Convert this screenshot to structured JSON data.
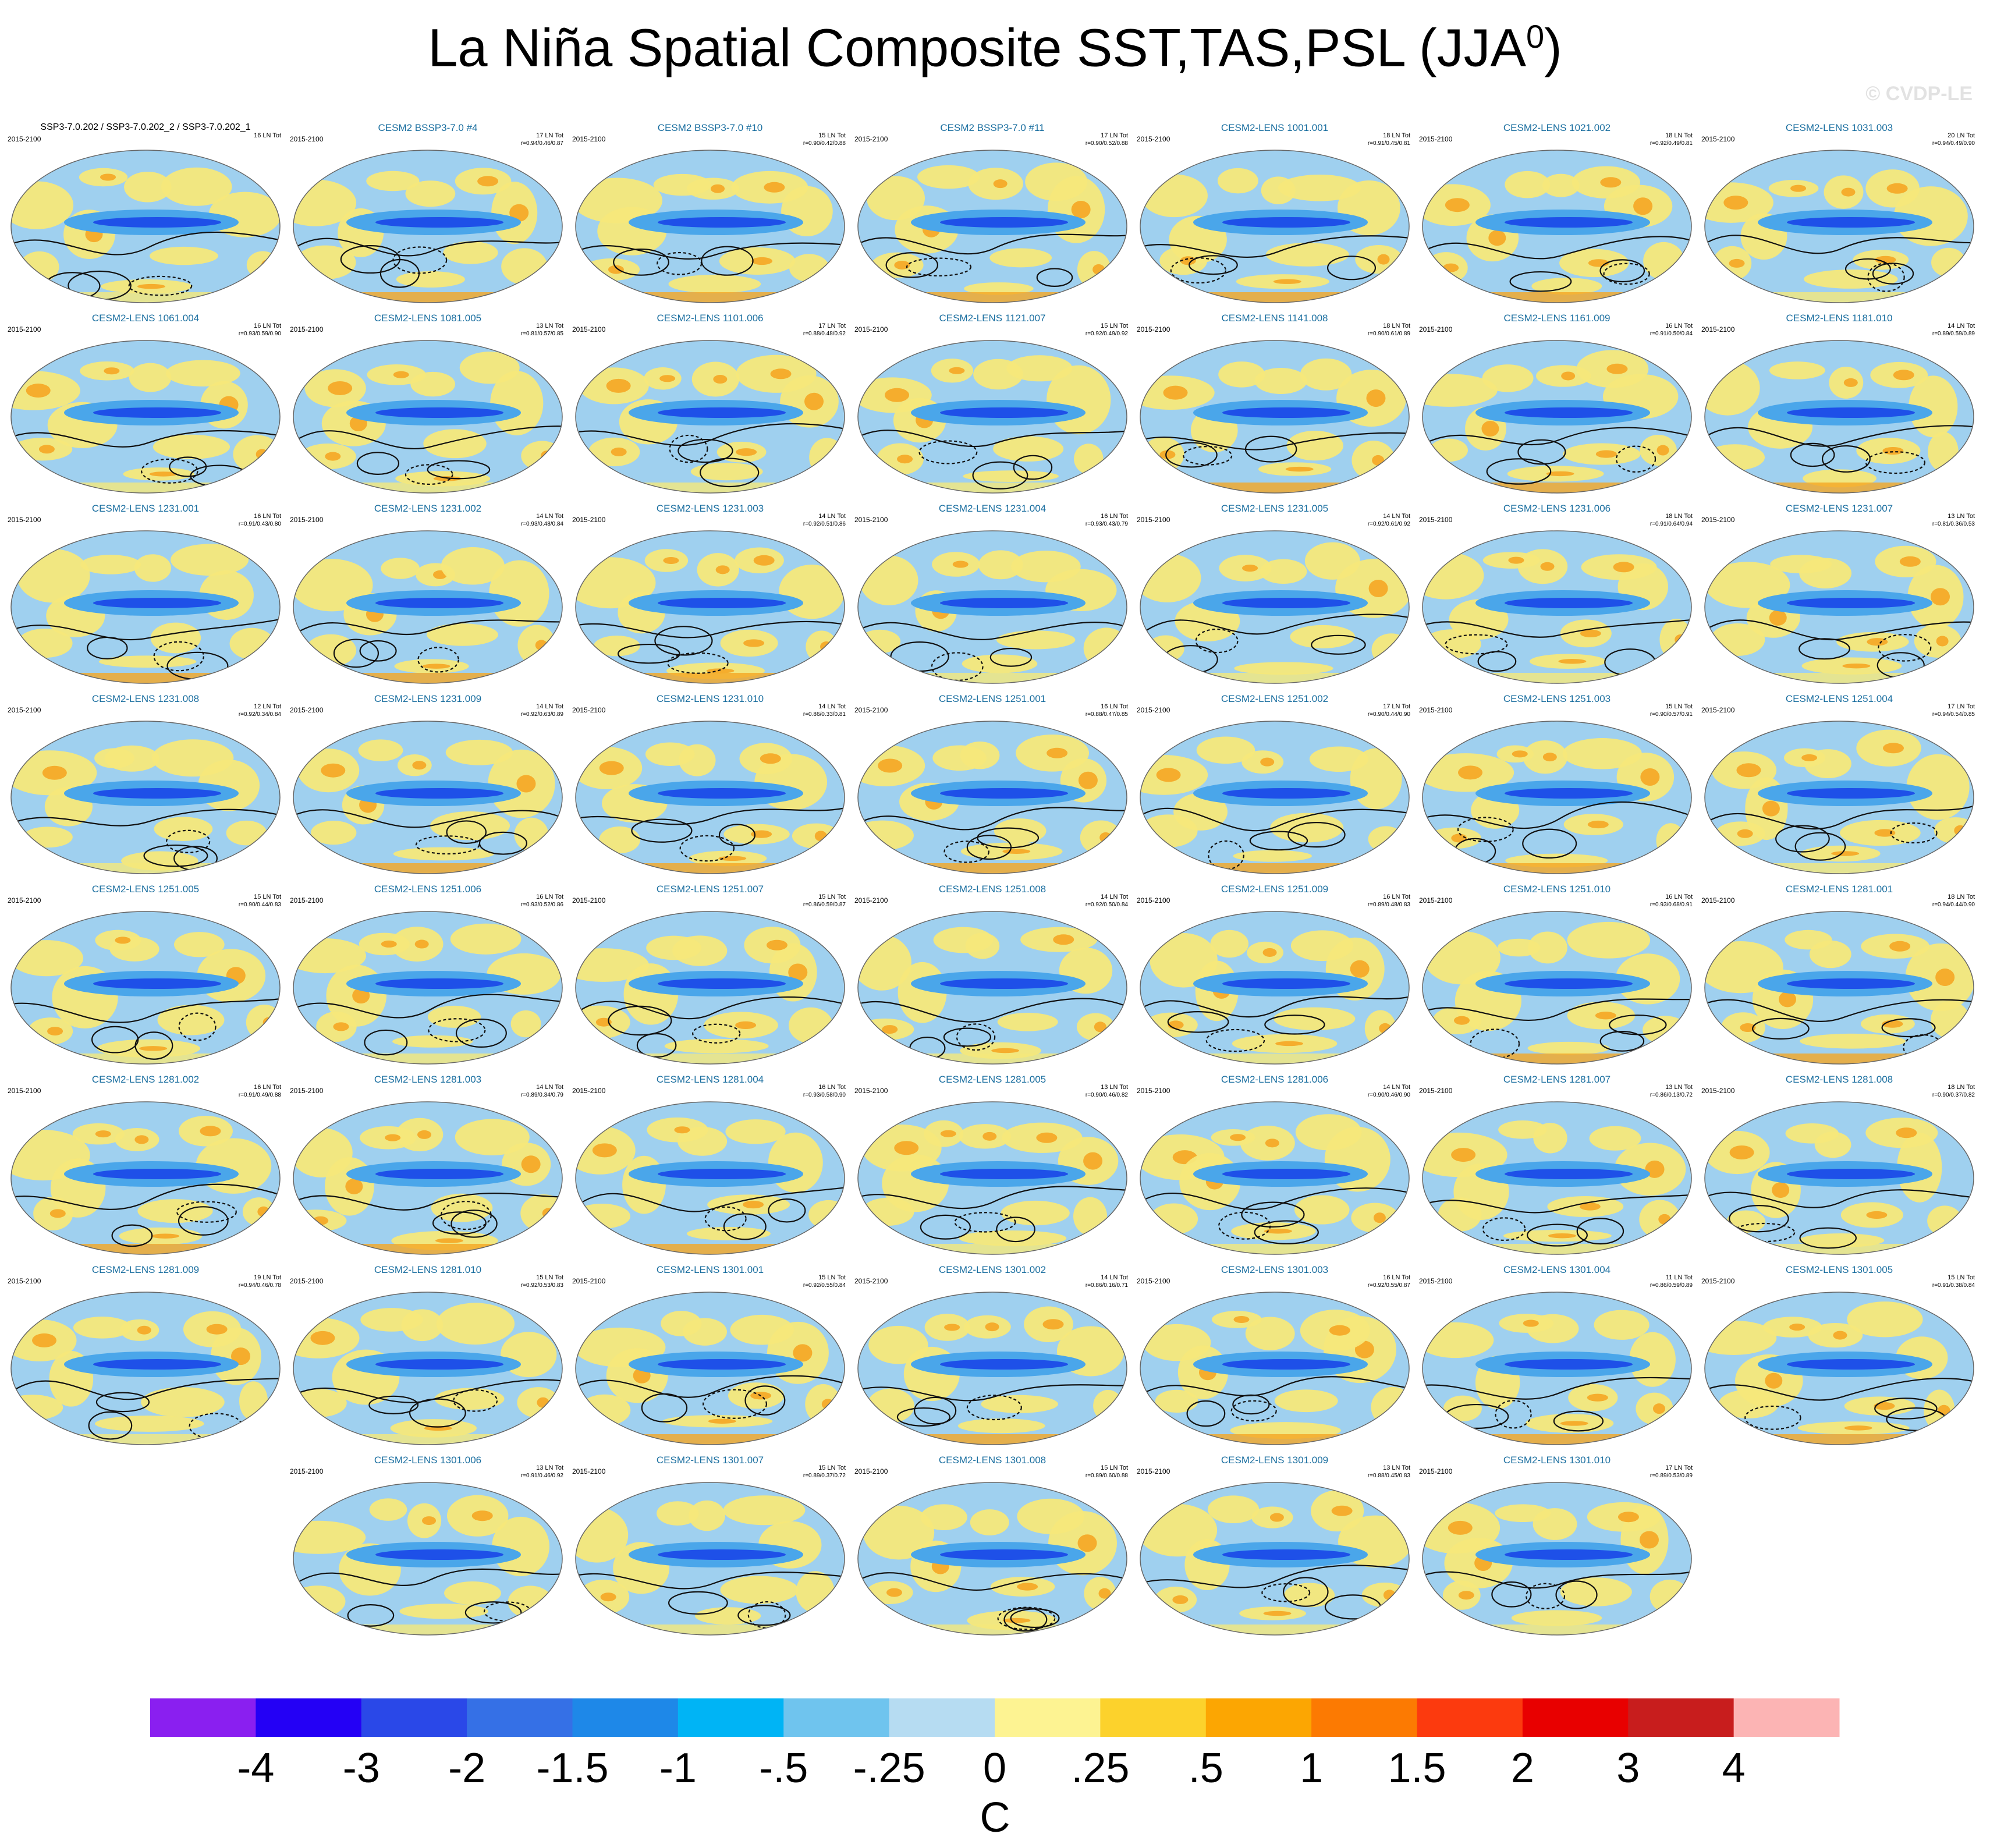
{
  "title": "La Niña Spatial Composite SST,TAS,PSL (JJA",
  "title_superscript": "0",
  "title_close": ")",
  "watermark": "© CVDP-LE",
  "colors": {
    "ocean_base": "#9fd0ef",
    "equatorial_core": "#1e50e8",
    "warm_land": "#f5e87a",
    "warm_accent": "#f5a623",
    "contour": "#111111"
  },
  "chart_data": {
    "type": "map",
    "grid_columns": 7,
    "panels": [
      {
        "model": "SSP3-7.0.202 / SSP3-7.0.202_2 / SSP3-7.0.202_1",
        "period": "2015-2100",
        "count": "16 LN Tot",
        "stats": ""
      },
      {
        "model": "CESM2 BSSP3-7.0 #4",
        "period": "2015-2100",
        "count": "17 LN Tot",
        "stats": "r=0.94/0.46/0.87"
      },
      {
        "model": "CESM2 BSSP3-7.0 #10",
        "period": "2015-2100",
        "count": "15 LN Tot",
        "stats": "r=0.90/0.42/0.88"
      },
      {
        "model": "CESM2 BSSP3-7.0 #11",
        "period": "2015-2100",
        "count": "17 LN Tot",
        "stats": "r=0.90/0.52/0.88"
      },
      {
        "model": "CESM2-LENS 1001.001",
        "period": "2015-2100",
        "count": "18 LN Tot",
        "stats": "r=0.91/0.45/0.81"
      },
      {
        "model": "CESM2-LENS 1021.002",
        "period": "2015-2100",
        "count": "18 LN Tot",
        "stats": "r=0.92/0.49/0.81"
      },
      {
        "model": "CESM2-LENS 1031.003",
        "period": "2015-2100",
        "count": "20 LN Tot",
        "stats": "r=0.94/0.49/0.90"
      },
      {
        "model": "CESM2-LENS 1061.004",
        "period": "2015-2100",
        "count": "16 LN Tot",
        "stats": "r=0.93/0.59/0.90"
      },
      {
        "model": "CESM2-LENS 1081.005",
        "period": "2015-2100",
        "count": "13 LN Tot",
        "stats": "r=0.81/0.57/0.85"
      },
      {
        "model": "CESM2-LENS 1101.006",
        "period": "2015-2100",
        "count": "17 LN Tot",
        "stats": "r=0.88/0.48/0.92"
      },
      {
        "model": "CESM2-LENS 1121.007",
        "period": "2015-2100",
        "count": "15 LN Tot",
        "stats": "r=0.92/0.49/0.92"
      },
      {
        "model": "CESM2-LENS 1141.008",
        "period": "2015-2100",
        "count": "18 LN Tot",
        "stats": "r=0.90/0.61/0.89"
      },
      {
        "model": "CESM2-LENS 1161.009",
        "period": "2015-2100",
        "count": "16 LN Tot",
        "stats": "r=0.91/0.50/0.84"
      },
      {
        "model": "CESM2-LENS 1181.010",
        "period": "2015-2100",
        "count": "14 LN Tot",
        "stats": "r=0.89/0.59/0.89"
      },
      {
        "model": "CESM2-LENS 1231.001",
        "period": "2015-2100",
        "count": "16 LN Tot",
        "stats": "r=0.91/0.43/0.80"
      },
      {
        "model": "CESM2-LENS 1231.002",
        "period": "2015-2100",
        "count": "14 LN Tot",
        "stats": "r=0.93/0.48/0.84"
      },
      {
        "model": "CESM2-LENS 1231.003",
        "period": "2015-2100",
        "count": "14 LN Tot",
        "stats": "r=0.92/0.51/0.86"
      },
      {
        "model": "CESM2-LENS 1231.004",
        "period": "2015-2100",
        "count": "16 LN Tot",
        "stats": "r=0.93/0.43/0.79"
      },
      {
        "model": "CESM2-LENS 1231.005",
        "period": "2015-2100",
        "count": "14 LN Tot",
        "stats": "r=0.92/0.61/0.92"
      },
      {
        "model": "CESM2-LENS 1231.006",
        "period": "2015-2100",
        "count": "18 LN Tot",
        "stats": "r=0.91/0.64/0.94"
      },
      {
        "model": "CESM2-LENS 1231.007",
        "period": "2015-2100",
        "count": "13 LN Tot",
        "stats": "r=0.81/0.36/0.53"
      },
      {
        "model": "CESM2-LENS 1231.008",
        "period": "2015-2100",
        "count": "12 LN Tot",
        "stats": "r=0.92/0.34/0.84"
      },
      {
        "model": "CESM2-LENS 1231.009",
        "period": "2015-2100",
        "count": "14 LN Tot",
        "stats": "r=0.92/0.63/0.89"
      },
      {
        "model": "CESM2-LENS 1231.010",
        "period": "2015-2100",
        "count": "14 LN Tot",
        "stats": "r=0.86/0.33/0.81"
      },
      {
        "model": "CESM2-LENS 1251.001",
        "period": "2015-2100",
        "count": "16 LN Tot",
        "stats": "r=0.88/0.47/0.85"
      },
      {
        "model": "CESM2-LENS 1251.002",
        "period": "2015-2100",
        "count": "17 LN Tot",
        "stats": "r=0.90/0.44/0.90"
      },
      {
        "model": "CESM2-LENS 1251.003",
        "period": "2015-2100",
        "count": "15 LN Tot",
        "stats": "r=0.90/0.57/0.91"
      },
      {
        "model": "CESM2-LENS 1251.004",
        "period": "2015-2100",
        "count": "17 LN Tot",
        "stats": "r=0.94/0.54/0.85"
      },
      {
        "model": "CESM2-LENS 1251.005",
        "period": "2015-2100",
        "count": "15 LN Tot",
        "stats": "r=0.90/0.44/0.83"
      },
      {
        "model": "CESM2-LENS 1251.006",
        "period": "2015-2100",
        "count": "16 LN Tot",
        "stats": "r=0.93/0.52/0.86"
      },
      {
        "model": "CESM2-LENS 1251.007",
        "period": "2015-2100",
        "count": "15 LN Tot",
        "stats": "r=0.86/0.59/0.87"
      },
      {
        "model": "CESM2-LENS 1251.008",
        "period": "2015-2100",
        "count": "14 LN Tot",
        "stats": "r=0.92/0.50/0.84"
      },
      {
        "model": "CESM2-LENS 1251.009",
        "period": "2015-2100",
        "count": "16 LN Tot",
        "stats": "r=0.89/0.48/0.83"
      },
      {
        "model": "CESM2-LENS 1251.010",
        "period": "2015-2100",
        "count": "16 LN Tot",
        "stats": "r=0.93/0.68/0.91"
      },
      {
        "model": "CESM2-LENS 1281.001",
        "period": "2015-2100",
        "count": "18 LN Tot",
        "stats": "r=0.94/0.44/0.90"
      },
      {
        "model": "CESM2-LENS 1281.002",
        "period": "2015-2100",
        "count": "16 LN Tot",
        "stats": "r=0.91/0.49/0.88"
      },
      {
        "model": "CESM2-LENS 1281.003",
        "period": "2015-2100",
        "count": "14 LN Tot",
        "stats": "r=0.89/0.34/0.79"
      },
      {
        "model": "CESM2-LENS 1281.004",
        "period": "2015-2100",
        "count": "16 LN Tot",
        "stats": "r=0.93/0.58/0.90"
      },
      {
        "model": "CESM2-LENS 1281.005",
        "period": "2015-2100",
        "count": "13 LN Tot",
        "stats": "r=0.90/0.46/0.82"
      },
      {
        "model": "CESM2-LENS 1281.006",
        "period": "2015-2100",
        "count": "14 LN Tot",
        "stats": "r=0.90/0.46/0.90"
      },
      {
        "model": "CESM2-LENS 1281.007",
        "period": "2015-2100",
        "count": "13 LN Tot",
        "stats": "r=0.86/0.13/0.72"
      },
      {
        "model": "CESM2-LENS 1281.008",
        "period": "2015-2100",
        "count": "18 LN Tot",
        "stats": "r=0.90/0.37/0.82"
      },
      {
        "model": "CESM2-LENS 1281.009",
        "period": "2015-2100",
        "count": "19 LN Tot",
        "stats": "r=0.94/0.46/0.78"
      },
      {
        "model": "CESM2-LENS 1281.010",
        "period": "2015-2100",
        "count": "15 LN Tot",
        "stats": "r=0.92/0.53/0.83"
      },
      {
        "model": "CESM2-LENS 1301.001",
        "period": "2015-2100",
        "count": "15 LN Tot",
        "stats": "r=0.92/0.55/0.84"
      },
      {
        "model": "CESM2-LENS 1301.002",
        "period": "2015-2100",
        "count": "14 LN Tot",
        "stats": "r=0.86/0.16/0.71"
      },
      {
        "model": "CESM2-LENS 1301.003",
        "period": "2015-2100",
        "count": "16 LN Tot",
        "stats": "r=0.92/0.55/0.87"
      },
      {
        "model": "CESM2-LENS 1301.004",
        "period": "2015-2100",
        "count": "11 LN Tot",
        "stats": "r=0.86/0.59/0.89"
      },
      {
        "model": "CESM2-LENS 1301.005",
        "period": "2015-2100",
        "count": "15 LN Tot",
        "stats": "r=0.91/0.38/0.84"
      },
      {
        "model": "CESM2-LENS 1301.006",
        "period": "2015-2100",
        "count": "13 LN Tot",
        "stats": "r=0.91/0.46/0.92"
      },
      {
        "model": "CESM2-LENS 1301.007",
        "period": "2015-2100",
        "count": "15 LN Tot",
        "stats": "r=0.89/0.37/0.72"
      },
      {
        "model": "CESM2-LENS 1301.008",
        "period": "2015-2100",
        "count": "15 LN Tot",
        "stats": "r=0.89/0.60/0.88"
      },
      {
        "model": "CESM2-LENS 1301.009",
        "period": "2015-2100",
        "count": "13 LN Tot",
        "stats": "r=0.88/0.45/0.83"
      },
      {
        "model": "CESM2-LENS 1301.010",
        "period": "2015-2100",
        "count": "17 LN Tot",
        "stats": "r=0.89/0.53/0.89"
      }
    ],
    "colorbar": {
      "unit": "C",
      "tick_labels": [
        "-4",
        "-3",
        "-2",
        "-1.5",
        "-1",
        "-.5",
        "-.25",
        "0",
        ".25",
        ".5",
        "1",
        "1.5",
        "2",
        "3",
        "4"
      ],
      "colors": [
        "#8a1ff0",
        "#2400f5",
        "#2a48e8",
        "#3570e6",
        "#1e88e8",
        "#00b4f5",
        "#6fc4ee",
        "#b6dcf2",
        "#fdf392",
        "#fcd22c",
        "#fca602",
        "#fc7a02",
        "#fc3a0e",
        "#e80000",
        "#c81d1d",
        "#fcb4b4"
      ]
    }
  }
}
